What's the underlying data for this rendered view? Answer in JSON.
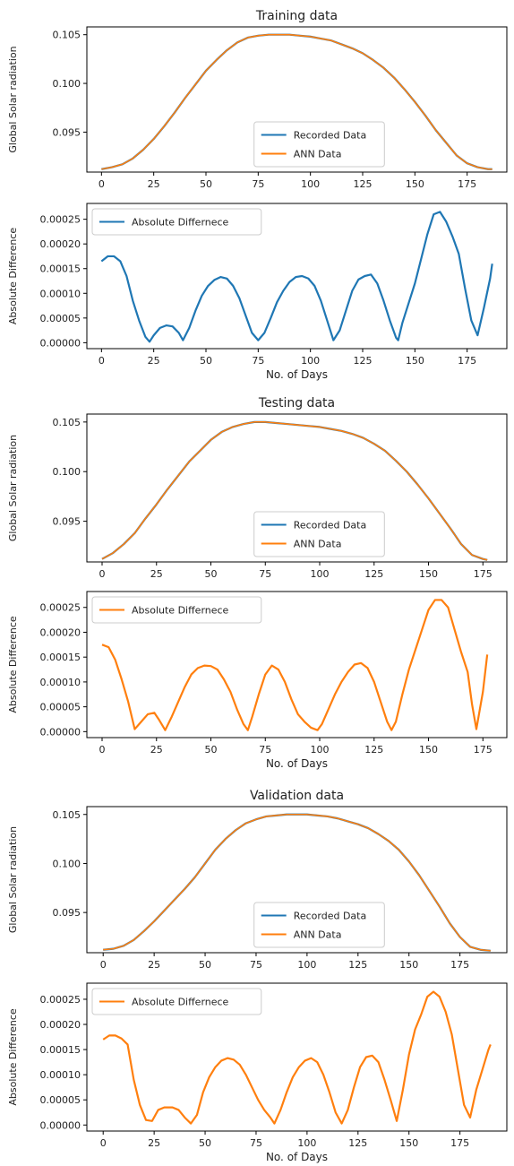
{
  "figure": {
    "colors": {
      "recorded": "#1f77b4",
      "ann": "#ff7f0e",
      "frame": "#000000"
    }
  },
  "chart_data": [
    {
      "type": "line",
      "title": "Training data",
      "xlabel": "",
      "ylabel": "Global Solar radiation",
      "xlim": [
        -7,
        194
      ],
      "ylim": [
        0.0909,
        0.1058
      ],
      "xticks": [
        0,
        25,
        50,
        75,
        100,
        125,
        150,
        175
      ],
      "yticks": [
        0.095,
        0.1,
        0.105
      ],
      "ytick_labels": [
        "0.095",
        "0.100",
        "0.105"
      ],
      "legend": "lower-center",
      "grid": false,
      "x": [
        0,
        5,
        10,
        15,
        20,
        25,
        30,
        35,
        40,
        45,
        50,
        55,
        60,
        65,
        70,
        75,
        80,
        85,
        90,
        95,
        100,
        105,
        110,
        115,
        120,
        125,
        130,
        135,
        140,
        145,
        150,
        155,
        160,
        165,
        170,
        175,
        180,
        185,
        187
      ],
      "series": [
        {
          "name": "Recorded Data",
          "color": "#1f77b4",
          "values": [
            0.0912,
            0.0914,
            0.0917,
            0.0923,
            0.0932,
            0.0943,
            0.0956,
            0.097,
            0.0985,
            0.0999,
            0.1013,
            0.1024,
            0.1034,
            0.1042,
            0.1047,
            0.1049,
            0.105,
            0.105,
            0.105,
            0.1049,
            0.1048,
            0.1046,
            0.1044,
            0.104,
            0.1036,
            0.1031,
            0.1024,
            0.1016,
            0.1006,
            0.0994,
            0.0981,
            0.0967,
            0.0952,
            0.0939,
            0.0926,
            0.0918,
            0.0914,
            0.0912,
            0.0912
          ]
        },
        {
          "name": "ANN Data",
          "color": "#ff7f0e",
          "values": [
            0.0912,
            0.0914,
            0.0917,
            0.0923,
            0.0932,
            0.0943,
            0.0956,
            0.097,
            0.0985,
            0.0999,
            0.1013,
            0.1024,
            0.1034,
            0.1042,
            0.1047,
            0.1049,
            0.105,
            0.105,
            0.105,
            0.1049,
            0.1048,
            0.1046,
            0.1044,
            0.104,
            0.1036,
            0.1031,
            0.1024,
            0.1016,
            0.1006,
            0.0994,
            0.0981,
            0.0967,
            0.0952,
            0.0939,
            0.0926,
            0.0918,
            0.0914,
            0.0912,
            0.0912
          ]
        }
      ]
    },
    {
      "type": "line",
      "title": "",
      "xlabel": "No. of Days",
      "ylabel": "Absolute Difference",
      "xlim": [
        -7,
        194
      ],
      "ylim": [
        -1.2e-05,
        0.000282
      ],
      "xticks": [
        0,
        25,
        50,
        75,
        100,
        125,
        150,
        175
      ],
      "yticks": [
        0,
        5e-05,
        0.0001,
        0.00015,
        0.0002,
        0.00025
      ],
      "ytick_labels": [
        "0.00000",
        "0.00005",
        "0.00010",
        "0.00015",
        "0.00020",
        "0.00025"
      ],
      "legend": "top-left",
      "grid": false,
      "x": [
        0,
        3,
        6,
        9,
        12,
        15,
        18,
        21,
        23,
        25,
        28,
        31,
        34,
        37,
        39,
        42,
        45,
        48,
        51,
        54,
        57,
        60,
        63,
        66,
        69,
        72,
        75,
        78,
        81,
        84,
        87,
        90,
        93,
        96,
        99,
        102,
        105,
        108,
        111,
        114,
        117,
        120,
        123,
        126,
        129,
        132,
        135,
        138,
        141,
        142,
        144,
        147,
        150,
        153,
        156,
        159,
        162,
        165,
        168,
        171,
        174,
        177,
        180,
        183,
        186,
        187
      ],
      "series": [
        {
          "name": "Absolute Differnece",
          "color": "#1f77b4",
          "values": [
            0.000165,
            0.000175,
            0.000175,
            0.000165,
            0.000135,
            8.5e-05,
            4.5e-05,
            1.2e-05,
            2e-06,
            1.5e-05,
            3e-05,
            3.5e-05,
            3.3e-05,
            2e-05,
            5e-06,
            3e-05,
            6.5e-05,
            9.5e-05,
            0.000115,
            0.000127,
            0.000133,
            0.00013,
            0.000115,
            9e-05,
            5.5e-05,
            2e-05,
            5e-06,
            2e-05,
            5e-05,
            8.2e-05,
            0.000105,
            0.000123,
            0.000133,
            0.000135,
            0.00013,
            0.000115,
            8.5e-05,
            4.5e-05,
            5e-06,
            2.5e-05,
            6.5e-05,
            0.000105,
            0.000128,
            0.000135,
            0.000138,
            0.00012,
            8.5e-05,
            4.5e-05,
            1e-05,
            5e-06,
            4e-05,
            8e-05,
            0.00012,
            0.00017,
            0.00022,
            0.00026,
            0.000265,
            0.000245,
            0.000215,
            0.00018,
            0.00011,
            4.5e-05,
            1.5e-05,
            7e-05,
            0.00013,
            0.00016
          ]
        }
      ]
    },
    {
      "type": "line",
      "title": "Testing data",
      "xlabel": "",
      "ylabel": "Global Solar radiation",
      "xlim": [
        -7,
        186
      ],
      "ylim": [
        0.0909,
        0.1058
      ],
      "xticks": [
        0,
        25,
        50,
        75,
        100,
        125,
        150,
        175
      ],
      "yticks": [
        0.095,
        0.1,
        0.105
      ],
      "ytick_labels": [
        "0.095",
        "0.100",
        "0.105"
      ],
      "legend": "lower-center",
      "grid": false,
      "x": [
        0,
        5,
        10,
        15,
        20,
        25,
        30,
        35,
        40,
        45,
        50,
        55,
        60,
        65,
        70,
        75,
        80,
        85,
        90,
        95,
        100,
        105,
        110,
        115,
        120,
        125,
        130,
        135,
        140,
        145,
        150,
        155,
        160,
        165,
        170,
        175,
        177
      ],
      "series": [
        {
          "name": "Recorded Data",
          "color": "#1f77b4",
          "values": [
            0.0912,
            0.0918,
            0.0927,
            0.0938,
            0.0953,
            0.0967,
            0.0982,
            0.0996,
            0.101,
            0.1021,
            0.1032,
            0.104,
            0.1045,
            0.1048,
            0.105,
            0.105,
            0.1049,
            0.1048,
            0.1047,
            0.1046,
            0.1045,
            0.1043,
            0.1041,
            0.1038,
            0.1034,
            0.1028,
            0.1021,
            0.1011,
            0.1,
            0.0987,
            0.0973,
            0.0958,
            0.0943,
            0.0927,
            0.0916,
            0.0912,
            0.0911
          ]
        },
        {
          "name": "ANN Data",
          "color": "#ff7f0e",
          "values": [
            0.0912,
            0.0918,
            0.0927,
            0.0938,
            0.0953,
            0.0967,
            0.0982,
            0.0996,
            0.101,
            0.1021,
            0.1032,
            0.104,
            0.1045,
            0.1048,
            0.105,
            0.105,
            0.1049,
            0.1048,
            0.1047,
            0.1046,
            0.1045,
            0.1043,
            0.1041,
            0.1038,
            0.1034,
            0.1028,
            0.1021,
            0.1011,
            0.1,
            0.0987,
            0.0973,
            0.0958,
            0.0943,
            0.0927,
            0.0916,
            0.0912,
            0.0911
          ]
        }
      ]
    },
    {
      "type": "line",
      "title": "",
      "xlabel": "No. of Days",
      "ylabel": "Absolute Difference",
      "xlim": [
        -7,
        186
      ],
      "ylim": [
        -1.2e-05,
        0.000282
      ],
      "xticks": [
        0,
        25,
        50,
        75,
        100,
        125,
        150,
        175
      ],
      "yticks": [
        0,
        5e-05,
        0.0001,
        0.00015,
        0.0002,
        0.00025
      ],
      "ytick_labels": [
        "0.00000",
        "0.00005",
        "0.00010",
        "0.00015",
        "0.00020",
        "0.00025"
      ],
      "legend": "top-left",
      "grid": false,
      "x": [
        0,
        3,
        6,
        9,
        12,
        15,
        18,
        21,
        24,
        26,
        29,
        32,
        35,
        38,
        41,
        44,
        47,
        50,
        53,
        56,
        59,
        62,
        65,
        67,
        69,
        72,
        75,
        78,
        81,
        84,
        87,
        90,
        93,
        96,
        99,
        101,
        104,
        107,
        110,
        113,
        116,
        119,
        122,
        125,
        128,
        131,
        133,
        135,
        138,
        141,
        144,
        147,
        150,
        153,
        156,
        159,
        162,
        165,
        168,
        170,
        172,
        175,
        177
      ],
      "series": [
        {
          "name": "Absolute Differnece",
          "color": "#ff7f0e",
          "values": [
            0.000175,
            0.00017,
            0.000145,
            0.000105,
            6e-05,
            5e-06,
            2e-05,
            3.5e-05,
            3.8e-05,
            2.5e-05,
            3e-06,
            3e-05,
            6e-05,
            9e-05,
            0.000115,
            0.000128,
            0.000133,
            0.000132,
            0.000125,
            0.000105,
            8e-05,
            4.5e-05,
            1.5e-05,
            3e-06,
            3e-05,
            7.5e-05,
            0.000115,
            0.000133,
            0.000125,
            0.0001,
            6.5e-05,
            3.5e-05,
            2e-05,
            8e-06,
            3e-06,
            1.5e-05,
            4.5e-05,
            7.5e-05,
            0.0001,
            0.00012,
            0.000135,
            0.000138,
            0.000128,
            0.0001,
            6e-05,
            2e-05,
            3e-06,
            2e-05,
            7.5e-05,
            0.000125,
            0.000165,
            0.000205,
            0.000245,
            0.000265,
            0.000265,
            0.00025,
            0.000205,
            0.00016,
            0.00012,
            5.5e-05,
            5e-06,
            8e-05,
            0.000155
          ]
        }
      ]
    },
    {
      "type": "line",
      "title": "Validation data",
      "xlabel": "",
      "ylabel": "Global Solar radiation",
      "xlim": [
        -8,
        198
      ],
      "ylim": [
        0.0909,
        0.1058
      ],
      "xticks": [
        0,
        25,
        50,
        75,
        100,
        125,
        150,
        175
      ],
      "yticks": [
        0.095,
        0.1,
        0.105
      ],
      "ytick_labels": [
        "0.095",
        "0.100",
        "0.105"
      ],
      "legend": "lower-center",
      "grid": false,
      "x": [
        0,
        5,
        10,
        15,
        20,
        25,
        30,
        35,
        40,
        45,
        50,
        55,
        60,
        65,
        70,
        75,
        80,
        85,
        90,
        95,
        100,
        105,
        110,
        115,
        120,
        125,
        130,
        135,
        140,
        145,
        150,
        155,
        160,
        165,
        170,
        175,
        180,
        185,
        190
      ],
      "series": [
        {
          "name": "Recorded Data",
          "color": "#1f77b4",
          "values": [
            0.0912,
            0.0913,
            0.0916,
            0.0922,
            0.0931,
            0.0941,
            0.0952,
            0.0963,
            0.0974,
            0.0986,
            0.1,
            0.1014,
            0.1025,
            0.1034,
            0.1041,
            0.1045,
            0.1048,
            0.1049,
            0.105,
            0.105,
            0.105,
            0.1049,
            0.1048,
            0.1046,
            0.1043,
            0.104,
            0.1036,
            0.103,
            0.1023,
            0.1014,
            0.1002,
            0.0988,
            0.0972,
            0.0956,
            0.0939,
            0.0925,
            0.0915,
            0.0912,
            0.0911
          ]
        },
        {
          "name": "ANN Data",
          "color": "#ff7f0e",
          "values": [
            0.0912,
            0.0913,
            0.0916,
            0.0922,
            0.0931,
            0.0941,
            0.0952,
            0.0963,
            0.0974,
            0.0986,
            0.1,
            0.1014,
            0.1025,
            0.1034,
            0.1041,
            0.1045,
            0.1048,
            0.1049,
            0.105,
            0.105,
            0.105,
            0.1049,
            0.1048,
            0.1046,
            0.1043,
            0.104,
            0.1036,
            0.103,
            0.1023,
            0.1014,
            0.1002,
            0.0988,
            0.0972,
            0.0956,
            0.0939,
            0.0925,
            0.0915,
            0.0912,
            0.0911
          ]
        }
      ]
    },
    {
      "type": "line",
      "title": "",
      "xlabel": "No. of Days",
      "ylabel": "Absolute Difference",
      "xlim": [
        -8,
        198
      ],
      "ylim": [
        -1.2e-05,
        0.000282
      ],
      "xticks": [
        0,
        25,
        50,
        75,
        100,
        125,
        150,
        175
      ],
      "yticks": [
        0,
        5e-05,
        0.0001,
        0.00015,
        0.0002,
        0.00025
      ],
      "ytick_labels": [
        "0.00000",
        "0.00005",
        "0.00010",
        "0.00015",
        "0.00020",
        "0.00025"
      ],
      "legend": "top-left",
      "grid": false,
      "x": [
        0,
        3,
        6,
        9,
        12,
        15,
        18,
        21,
        24,
        27,
        30,
        34,
        37,
        40,
        43,
        46,
        49,
        52,
        55,
        58,
        61,
        64,
        67,
        70,
        73,
        76,
        79,
        82,
        84,
        87,
        90,
        93,
        96,
        99,
        102,
        105,
        108,
        111,
        114,
        117,
        120,
        123,
        126,
        129,
        132,
        135,
        138,
        141,
        144,
        147,
        150,
        153,
        156,
        159,
        162,
        165,
        168,
        171,
        174,
        177,
        180,
        183,
        186,
        189,
        190
      ],
      "series": [
        {
          "name": "Absolute Differnece",
          "color": "#ff7f0e",
          "values": [
            0.00017,
            0.000178,
            0.000178,
            0.000172,
            0.00016,
            9e-05,
            4e-05,
            1e-05,
            8e-06,
            3e-05,
            3.5e-05,
            3.5e-05,
            3e-05,
            1.5e-05,
            3e-06,
            2e-05,
            6.5e-05,
            9.5e-05,
            0.000115,
            0.000128,
            0.000133,
            0.00013,
            0.00012,
            0.0001,
            7.5e-05,
            5e-05,
            3e-05,
            1.5e-05,
            3e-06,
            3e-05,
            6.5e-05,
            9.5e-05,
            0.000115,
            0.000128,
            0.000133,
            0.000125,
            0.0001,
            6.5e-05,
            2.5e-05,
            3e-06,
            3e-05,
            7.5e-05,
            0.000115,
            0.000135,
            0.000138,
            0.000125,
            9e-05,
            5e-05,
            8e-06,
            7e-05,
            0.00014,
            0.00019,
            0.00022,
            0.000255,
            0.000265,
            0.000255,
            0.000225,
            0.00018,
            0.00011,
            4e-05,
            1.5e-05,
            7e-05,
            0.00011,
            0.00015,
            0.00016
          ]
        }
      ]
    }
  ]
}
